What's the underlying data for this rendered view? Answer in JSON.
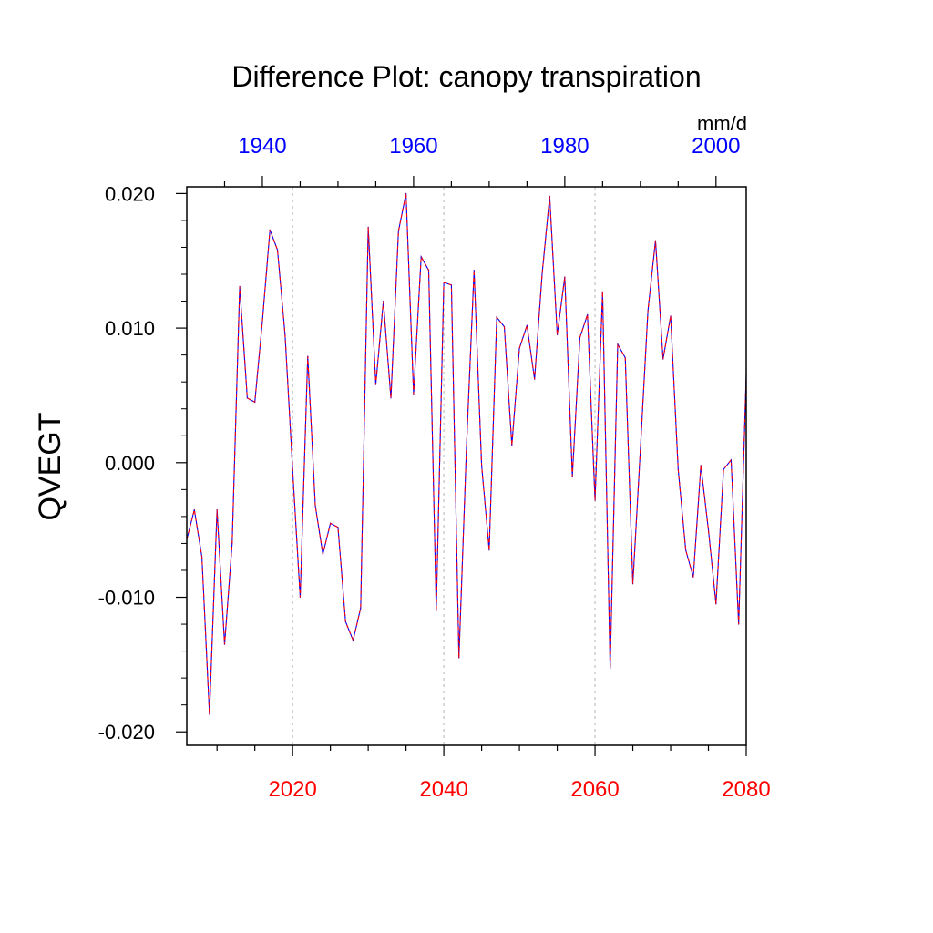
{
  "chart_data": {
    "type": "line",
    "title": "Difference Plot: canopy transpiration",
    "ylabel": "QVEGT",
    "units": "mm/d",
    "ylim": [
      -0.021,
      0.0205
    ],
    "y_ticks": [
      "0.020",
      "0.010",
      "0.000",
      "-0.010",
      "-0.020"
    ],
    "y_tick_values": [
      0.02,
      0.01,
      0.0,
      -0.01,
      -0.02
    ],
    "bottom_axis": {
      "range": [
        2006,
        2080
      ],
      "tick_values": [
        2020,
        2040,
        2060,
        2080
      ],
      "tick_labels": [
        "2020",
        "2040",
        "2060",
        "2080"
      ],
      "color": "#ff0000"
    },
    "top_axis": {
      "range": [
        1930,
        2004
      ],
      "tick_values": [
        1940,
        1960,
        1980,
        2000
      ],
      "tick_labels": [
        "1940",
        "1960",
        "1980",
        "2000"
      ],
      "color": "#0000ff"
    },
    "grid": "vertical dashed at major bottom ticks",
    "line_colors": {
      "solid": "#0000ff",
      "dashed": "#ff0000"
    },
    "series": [
      {
        "x": [
          2006,
          2007,
          2008,
          2009,
          2010,
          2011,
          2012,
          2013,
          2014,
          2015,
          2016,
          2017,
          2018,
          2019,
          2020,
          2021,
          2022,
          2023,
          2024,
          2025,
          2026,
          2027,
          2028,
          2029,
          2030,
          2031,
          2032,
          2033,
          2034,
          2035,
          2036,
          2037,
          2038,
          2039,
          2040,
          2041,
          2042,
          2043,
          2044,
          2045,
          2046,
          2047,
          2048,
          2049,
          2050,
          2051,
          2052,
          2053,
          2054,
          2055,
          2056,
          2057,
          2058,
          2059,
          2060,
          2061,
          2062,
          2063,
          2064,
          2065,
          2066,
          2067,
          2068,
          2069,
          2070,
          2071,
          2072,
          2073,
          2074,
          2075,
          2076,
          2077,
          2078,
          2079,
          2080
        ],
        "values": [
          -0.0057,
          -0.0035,
          -0.007,
          -0.0187,
          -0.0035,
          -0.0135,
          -0.006,
          0.0131,
          0.0048,
          0.0045,
          0.0105,
          0.0173,
          0.0158,
          0.0095,
          -0.0005,
          -0.01,
          0.0079,
          -0.0032,
          -0.0068,
          -0.0045,
          -0.0048,
          -0.0118,
          -0.0132,
          -0.0108,
          0.0175,
          0.0058,
          0.012,
          0.0048,
          0.0172,
          0.02,
          0.0051,
          0.0153,
          0.0143,
          -0.011,
          0.0134,
          0.0132,
          -0.0145,
          0.0012,
          0.0143,
          -0.0002,
          -0.0065,
          0.0108,
          0.0101,
          0.0013,
          0.0085,
          0.0102,
          0.0062,
          0.014,
          0.0198,
          0.0095,
          0.0138,
          -0.001,
          0.0093,
          0.011,
          -0.0028,
          0.0127,
          -0.0153,
          0.0088,
          0.0078,
          -0.009,
          0.001,
          0.0113,
          0.0165,
          0.0077,
          0.0109,
          -0.0005,
          -0.0065,
          -0.0085,
          -0.0002,
          -0.005,
          -0.0105,
          -0.0005,
          0.0002,
          -0.012,
          0.0065
        ]
      }
    ]
  }
}
